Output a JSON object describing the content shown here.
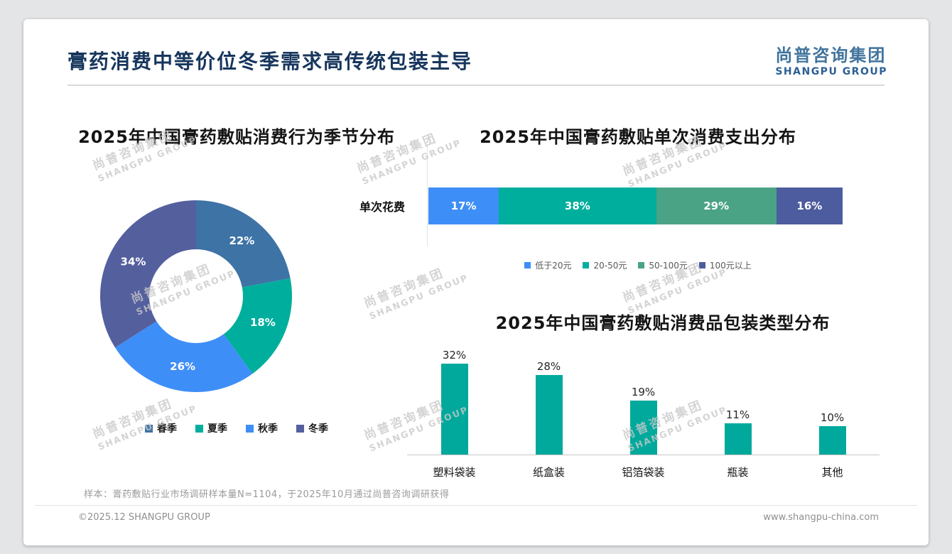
{
  "header": {
    "title": "膏药消费中等价位冬季需求高传统包装主导",
    "logo_cn": "尚普咨询集团",
    "logo_en": "SHANGPU GROUP"
  },
  "watermark": {
    "line1": "尚普咨询集团",
    "line2": "SHANGPU GROUP"
  },
  "footnote": "样本：膏药敷贴行业市场调研样本量N=1104，于2025年10月通过尚普咨询调研获得",
  "footer": {
    "left": "©2025.12 SHANGPU GROUP",
    "right": "www.shangpu-china.com"
  },
  "chart_data": [
    {
      "type": "pie",
      "variant": "donut",
      "title": "2025年中国膏药敷贴消费行为季节分布",
      "labels": [
        "春季",
        "夏季",
        "秋季",
        "冬季"
      ],
      "values": [
        22,
        18,
        26,
        34
      ],
      "unit": "%",
      "colors": [
        "#3e73a6",
        "#00ae9d",
        "#3e8ef7",
        "#545f9e"
      ],
      "legend_position": "bottom"
    },
    {
      "type": "bar",
      "variant": "horizontal-stacked",
      "title": "2025年中国膏药敷贴单次消费支出分布",
      "category": "单次花费",
      "series": [
        {
          "name": "低于20元",
          "value": 17,
          "color": "#3e8ef7"
        },
        {
          "name": "20-50元",
          "value": 38,
          "color": "#00ae9d"
        },
        {
          "name": "50-100元",
          "value": 29,
          "color": "#4aa384"
        },
        {
          "name": "100元以上",
          "value": 16,
          "color": "#4d5c9e"
        }
      ],
      "unit": "%",
      "xlim": [
        0,
        100
      ],
      "legend_position": "bottom"
    },
    {
      "type": "bar",
      "title": "2025年中国膏药敷贴消费品包装类型分布",
      "categories": [
        "塑料袋装",
        "纸盒装",
        "铝箔袋装",
        "瓶装",
        "其他"
      ],
      "values": [
        32,
        28,
        19,
        11,
        10
      ],
      "unit": "%",
      "color": "#00a99c",
      "ylim": [
        0,
        35
      ]
    }
  ]
}
